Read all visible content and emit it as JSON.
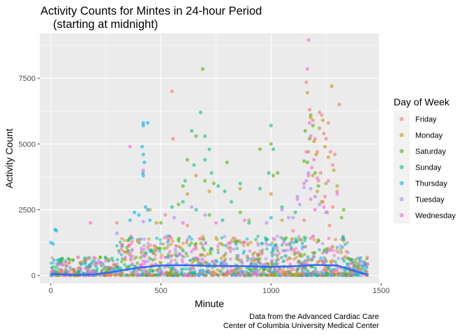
{
  "chart_data": {
    "type": "scatter",
    "title": "Activity Counts for Mintes in 24-hour Period",
    "subtitle": "(starting at midnight)",
    "xlabel": "Minute",
    "ylabel": "Activity Count",
    "xlim": [
      -50,
      1490
    ],
    "ylim": [
      -300,
      9200
    ],
    "x_ticks": [
      0,
      500,
      1000,
      1500
    ],
    "y_ticks": [
      0,
      2500,
      5000,
      7500
    ],
    "x_tick_labels": [
      "0",
      "500",
      "1000",
      "1500"
    ],
    "y_tick_labels": [
      "0",
      "2500",
      "5000",
      "7500"
    ],
    "grid": true,
    "legend": {
      "title": "Day of Week",
      "placement": "right",
      "entries": [
        "Friday",
        "Monday",
        "Saturday",
        "Sunday",
        "Thursday",
        "Tuesday",
        "Wednesday"
      ]
    },
    "colors": {
      "Friday": "#F8766D",
      "Monday": "#C49A00",
      "Saturday": "#53B400",
      "Sunday": "#00C094",
      "Thursday": "#00B6EB",
      "Tuesday": "#A58AFF",
      "Wednesday": "#FB61D7",
      "smooth": "#3366FF",
      "panel": "#EBEBEB",
      "grid": "#FFFFFF"
    },
    "series": [
      {
        "name": "Friday",
        "points": [
          [
            1160,
            7350
          ],
          [
            1175,
            6300
          ],
          [
            1190,
            5900
          ],
          [
            1200,
            5200
          ],
          [
            1210,
            4700
          ],
          [
            1220,
            6200
          ],
          [
            1230,
            6100
          ],
          [
            1240,
            5400
          ],
          [
            1250,
            5200
          ],
          [
            1260,
            5800
          ],
          [
            1270,
            4700
          ],
          [
            1280,
            4200
          ],
          [
            1290,
            4600
          ],
          [
            1310,
            6500
          ],
          [
            1300,
            3200
          ],
          [
            1225,
            3900
          ],
          [
            1215,
            3600
          ],
          [
            1245,
            3000
          ],
          [
            1280,
            2600
          ],
          [
            1150,
            2100
          ],
          [
            1235,
            2800
          ],
          [
            1255,
            2400
          ],
          [
            1265,
            1900
          ],
          [
            550,
            7000
          ],
          [
            555,
            5200
          ],
          [
            520,
            2300
          ],
          [
            300,
            2000
          ],
          [
            620,
            1900
          ],
          [
            1100,
            1700
          ]
        ]
      },
      {
        "name": "Monday",
        "points": [
          [
            1165,
            6950
          ],
          [
            1180,
            6000
          ],
          [
            1195,
            5100
          ],
          [
            1205,
            4600
          ],
          [
            1220,
            5600
          ],
          [
            1235,
            5900
          ],
          [
            1245,
            4900
          ],
          [
            1260,
            4500
          ],
          [
            1275,
            7200
          ],
          [
            1285,
            4000
          ],
          [
            1300,
            3400
          ],
          [
            1170,
            4700
          ],
          [
            1190,
            3800
          ],
          [
            1250,
            3500
          ],
          [
            1210,
            3200
          ],
          [
            1230,
            2800
          ],
          [
            660,
            3800
          ],
          [
            620,
            3100
          ],
          [
            720,
            3200
          ],
          [
            860,
            3300
          ],
          [
            900,
            2100
          ],
          [
            1000,
            3100
          ],
          [
            1050,
            2100
          ],
          [
            450,
            2500
          ],
          [
            480,
            2000
          ]
        ]
      },
      {
        "name": "Saturday",
        "points": [
          [
            690,
            7850
          ],
          [
            660,
            5300
          ],
          [
            620,
            4400
          ],
          [
            700,
            3600
          ],
          [
            740,
            3500
          ],
          [
            800,
            4300
          ],
          [
            600,
            3400
          ],
          [
            580,
            2700
          ],
          [
            720,
            2300
          ],
          [
            860,
            2400
          ],
          [
            950,
            4800
          ],
          [
            1000,
            5000
          ],
          [
            1010,
            3800
          ],
          [
            1030,
            3900
          ],
          [
            1150,
            4350
          ],
          [
            1155,
            5500
          ],
          [
            1165,
            4300
          ],
          [
            1175,
            5200
          ],
          [
            1180,
            6100
          ],
          [
            1190,
            5700
          ],
          [
            1200,
            3900
          ],
          [
            1215,
            3400
          ],
          [
            1320,
            2200
          ],
          [
            1330,
            2500
          ],
          [
            500,
            2000
          ]
        ]
      },
      {
        "name": "Sunday",
        "points": [
          [
            680,
            6200
          ],
          [
            640,
            5500
          ],
          [
            700,
            5300
          ],
          [
            720,
            4800
          ],
          [
            650,
            4200
          ],
          [
            610,
            3600
          ],
          [
            700,
            4400
          ],
          [
            730,
            3900
          ],
          [
            760,
            3400
          ],
          [
            790,
            3200
          ],
          [
            820,
            2800
          ],
          [
            860,
            3500
          ],
          [
            950,
            3300
          ],
          [
            990,
            3900
          ],
          [
            1000,
            5700
          ],
          [
            1010,
            4800
          ],
          [
            600,
            2800
          ],
          [
            550,
            2600
          ],
          [
            660,
            2500
          ],
          [
            780,
            2100
          ],
          [
            900,
            2000
          ],
          [
            1050,
            2600
          ],
          [
            1110,
            2400
          ]
        ]
      },
      {
        "name": "Thursday",
        "points": [
          [
            420,
            5800
          ],
          [
            420,
            5700
          ],
          [
            440,
            5800
          ],
          [
            415,
            4900
          ],
          [
            420,
            4600
          ],
          [
            425,
            4300
          ],
          [
            418,
            3900
          ],
          [
            420,
            3800
          ],
          [
            430,
            2600
          ],
          [
            440,
            2500
          ],
          [
            400,
            2300
          ],
          [
            380,
            2400
          ],
          [
            20,
            1750
          ],
          [
            25,
            1700
          ],
          [
            0,
            1250
          ],
          [
            10,
            1200
          ],
          [
            450,
            2100
          ],
          [
            360,
            2100
          ],
          [
            1000,
            2200
          ]
        ]
      },
      {
        "name": "Tuesday",
        "points": [
          [
            1170,
            3900
          ],
          [
            1160,
            3600
          ],
          [
            1150,
            3350
          ],
          [
            1180,
            3300
          ],
          [
            1120,
            3000
          ],
          [
            1130,
            2700
          ],
          [
            1050,
            2500
          ],
          [
            1080,
            2200
          ],
          [
            980,
            2000
          ],
          [
            1100,
            2200
          ],
          [
            640,
            2600
          ],
          [
            700,
            2300
          ],
          [
            560,
            2200
          ],
          [
            1200,
            3000
          ],
          [
            1220,
            2700
          ],
          [
            300,
            1600
          ],
          [
            420,
            2050
          ],
          [
            1250,
            2400
          ]
        ]
      },
      {
        "name": "Wednesday",
        "points": [
          [
            1170,
            8950
          ],
          [
            1165,
            7850
          ],
          [
            1175,
            5800
          ],
          [
            1180,
            5300
          ],
          [
            1160,
            4700
          ],
          [
            1185,
            4100
          ],
          [
            1195,
            4400
          ],
          [
            1170,
            3800
          ],
          [
            1150,
            3500
          ],
          [
            1210,
            3700
          ],
          [
            1260,
            3600
          ],
          [
            1300,
            3100
          ],
          [
            360,
            4900
          ],
          [
            420,
            4000
          ],
          [
            1120,
            2900
          ],
          [
            1180,
            2900
          ],
          [
            1200,
            2500
          ],
          [
            1240,
            2600
          ],
          [
            180,
            2000
          ],
          [
            600,
            2000
          ],
          [
            750,
            2000
          ],
          [
            880,
            2100
          ]
        ]
      }
    ],
    "smooth": {
      "x": [
        0,
        100,
        200,
        300,
        400,
        500,
        600,
        700,
        800,
        900,
        1000,
        1100,
        1200,
        1300,
        1350,
        1400,
        1440
      ],
      "y": [
        60,
        20,
        40,
        160,
        300,
        380,
        390,
        370,
        360,
        350,
        330,
        350,
        400,
        380,
        250,
        120,
        20
      ]
    }
  },
  "caption": {
    "line1": "Data from the Advanced Cardiac Care",
    "line2": "Center of Columbia University Medical Center"
  }
}
